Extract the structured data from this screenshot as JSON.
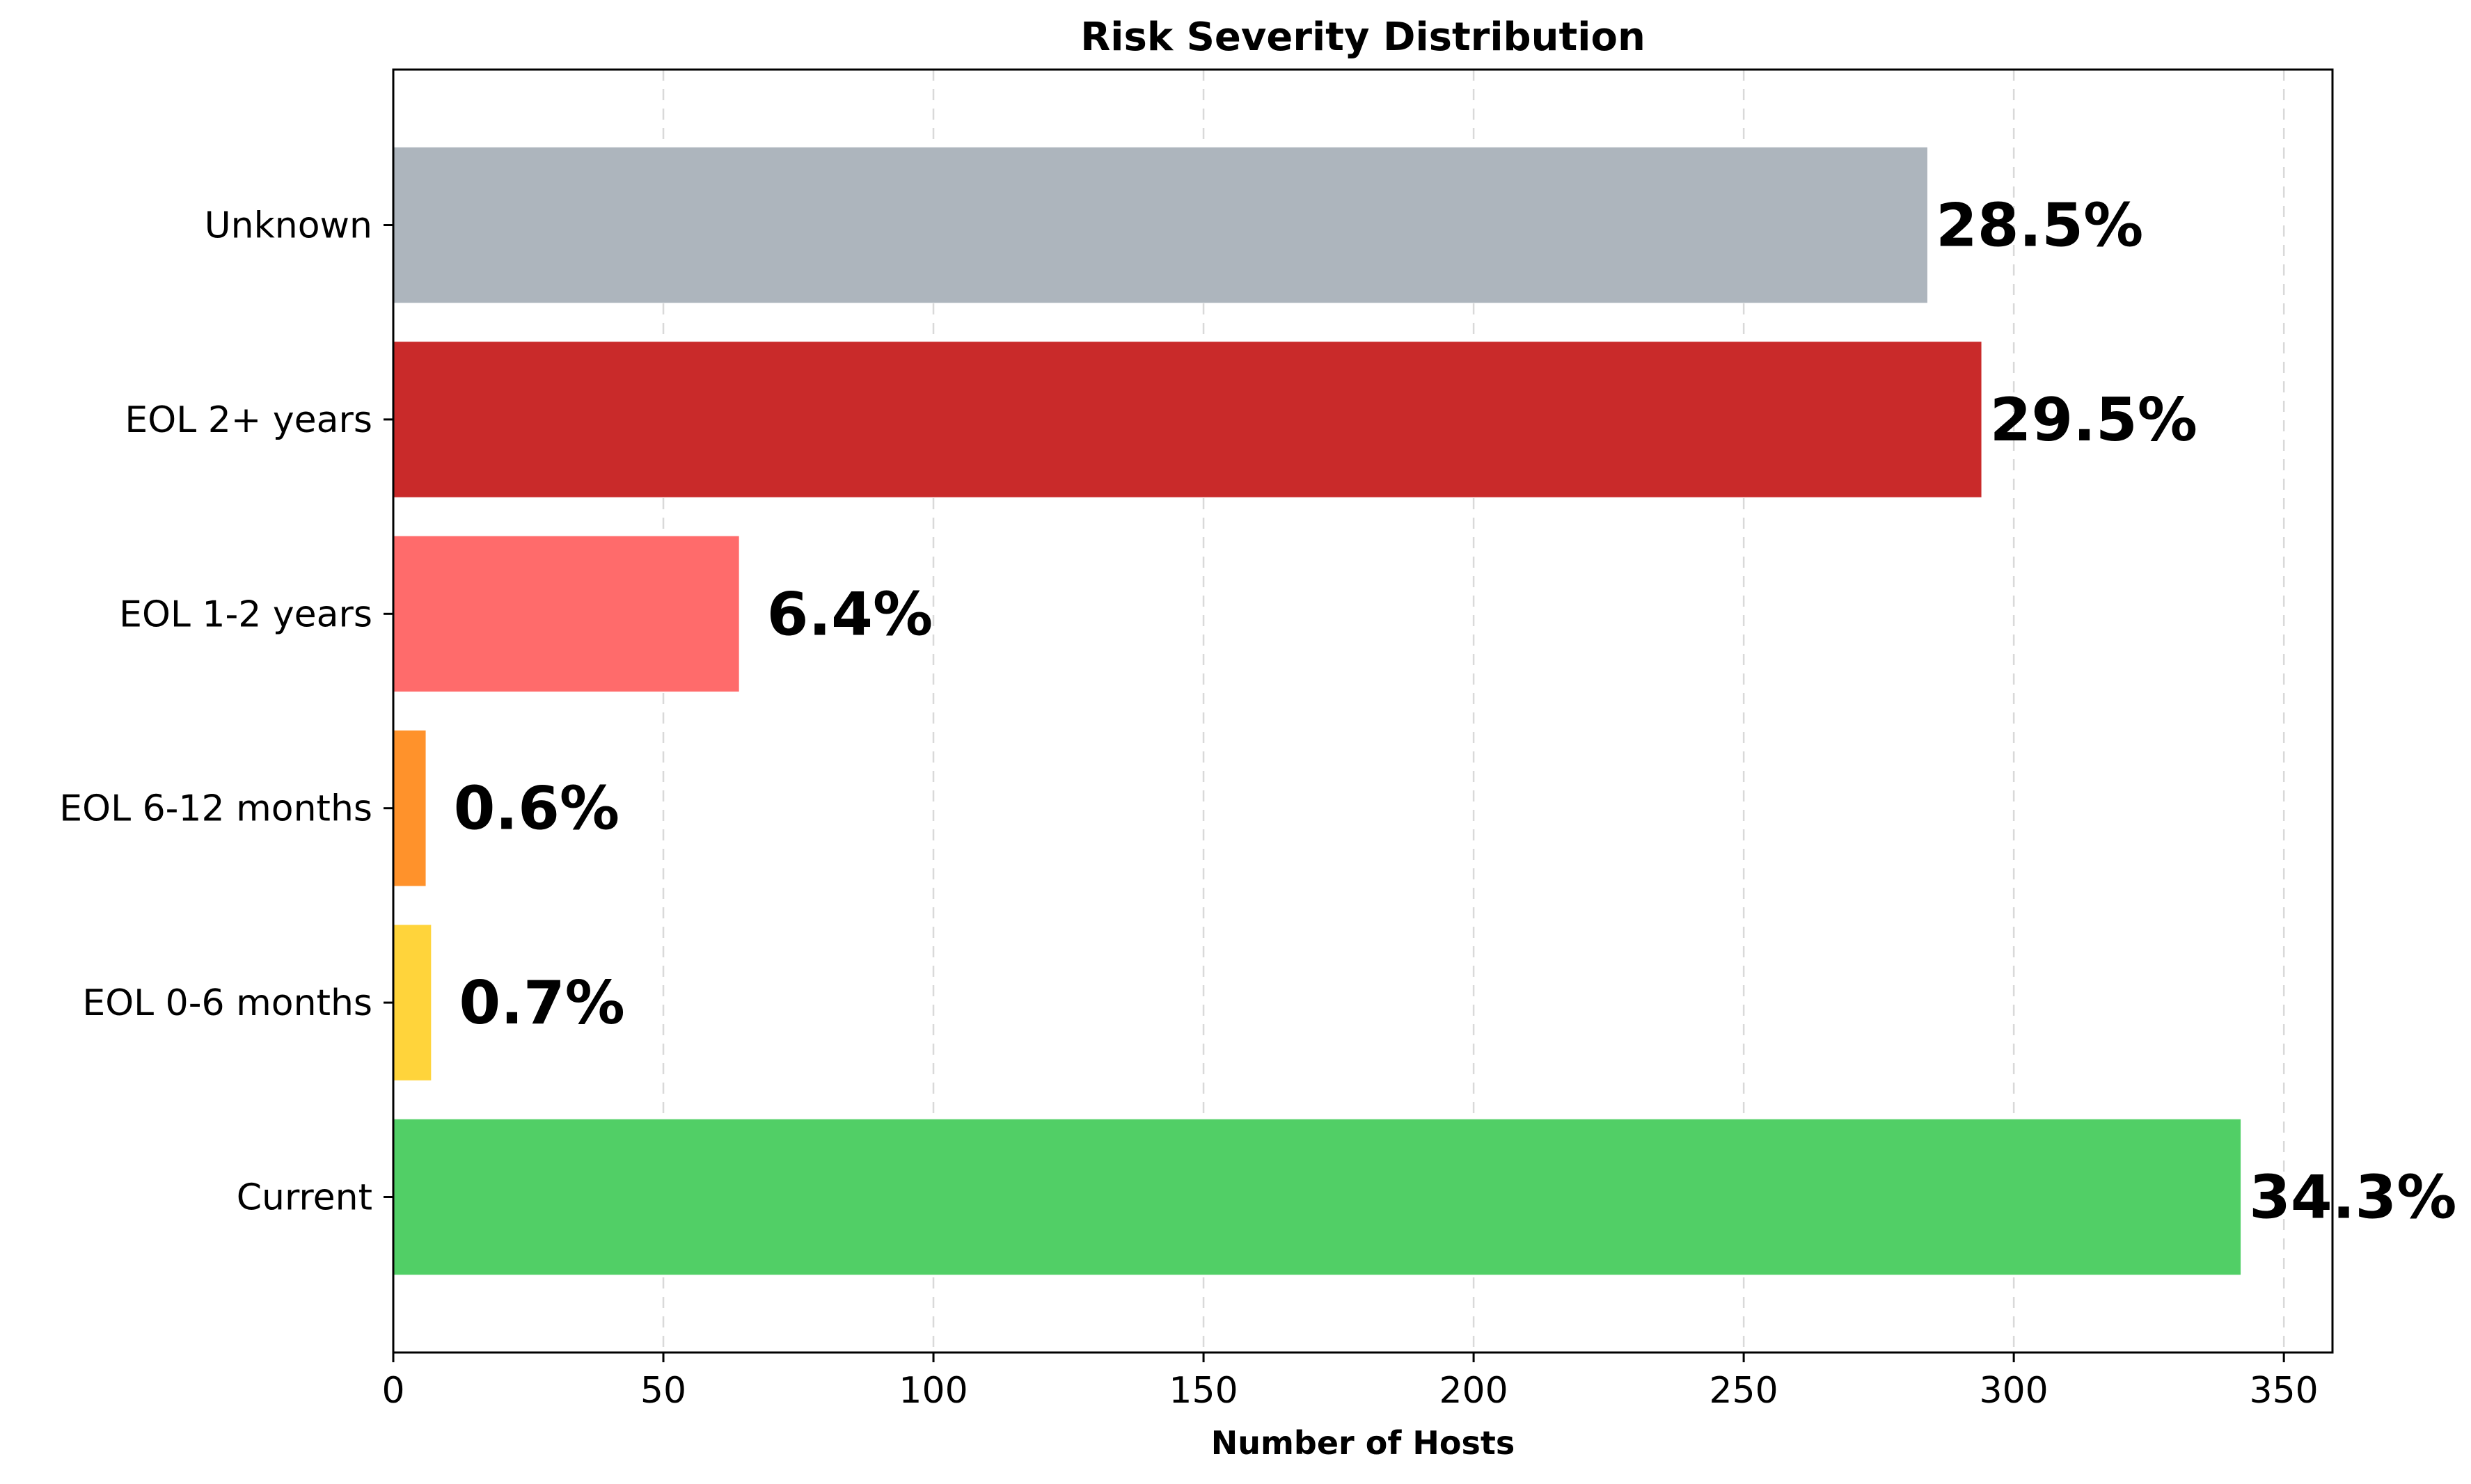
{
  "chart_data": {
    "type": "bar",
    "orientation": "horizontal",
    "title": "Risk Severity Distribution",
    "xlabel": "Number of Hosts",
    "ylabel": "",
    "xlim": [
      0,
      359
    ],
    "xticks": [
      0,
      50,
      100,
      150,
      200,
      250,
      300,
      350
    ],
    "xtick_labels": [
      "0",
      "50",
      "100",
      "150",
      "200",
      "250",
      "300",
      "350"
    ],
    "grid": "x-axis dashed",
    "categories": [
      "Current",
      "EOL 0-6 months",
      "EOL 6-12 months",
      "EOL 1-2 years",
      "EOL 2+ years",
      "Unknown"
    ],
    "values": [
      342,
      7,
      6,
      64,
      294,
      284
    ],
    "data_labels": [
      "34.3%",
      "0.7%",
      "0.6%",
      "6.4%",
      "29.5%",
      "28.5%"
    ],
    "colors": [
      "#51cf66",
      "#ffd43b",
      "#ff922b",
      "#ff6b6b",
      "#c92a2a",
      "#adb5bd"
    ]
  }
}
